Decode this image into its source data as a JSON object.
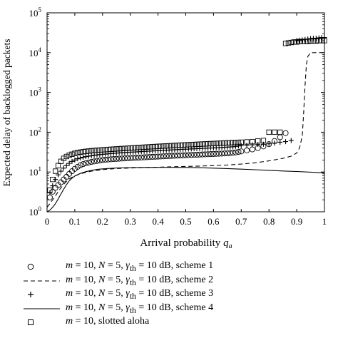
{
  "chart_data": {
    "type": "scatter",
    "xlabel": "Arrival probability",
    "xlabel_symbol": "q",
    "xlabel_sub": "a",
    "ylabel": "Expected delay of backlogged packets",
    "xlim": [
      0,
      1
    ],
    "ylim": [
      1,
      100000
    ],
    "yscale": "log",
    "x_ticks": [
      "0",
      "0.1",
      "0.2",
      "0.3",
      "0.4",
      "0.5",
      "0.6",
      "0.7",
      "0.8",
      "0.9",
      "1"
    ],
    "y_ticks": [
      {
        "base": "10",
        "exp": "0"
      },
      {
        "base": "10",
        "exp": "1"
      },
      {
        "base": "10",
        "exp": "2"
      },
      {
        "base": "10",
        "exp": "3"
      },
      {
        "base": "10",
        "exp": "4"
      },
      {
        "base": "10",
        "exp": "5"
      }
    ],
    "grid": false,
    "legend_position": "below",
    "series": [
      {
        "label": {
          "pre": "m",
          "a": " = 10, ",
          "b": "N",
          "c": " = 5, ",
          "d": "γ",
          "sub": "th",
          "e": " = 10 dB, scheme 1"
        },
        "marker": "circle",
        "x": [
          0.01,
          0.02,
          0.03,
          0.04,
          0.05,
          0.06,
          0.07,
          0.08,
          0.09,
          0.1,
          0.11,
          0.12,
          0.13,
          0.14,
          0.15,
          0.16,
          0.17,
          0.18,
          0.19,
          0.2,
          0.21,
          0.22,
          0.23,
          0.24,
          0.25,
          0.26,
          0.27,
          0.28,
          0.29,
          0.3,
          0.31,
          0.32,
          0.33,
          0.34,
          0.35,
          0.36,
          0.37,
          0.38,
          0.39,
          0.4,
          0.41,
          0.42,
          0.43,
          0.44,
          0.45,
          0.46,
          0.47,
          0.48,
          0.49,
          0.5,
          0.51,
          0.52,
          0.53,
          0.54,
          0.55,
          0.56,
          0.57,
          0.58,
          0.59,
          0.6,
          0.61,
          0.62,
          0.63,
          0.64,
          0.65,
          0.66,
          0.67,
          0.68,
          0.69,
          0.7,
          0.72,
          0.74,
          0.76,
          0.78,
          0.8,
          0.82,
          0.84,
          0.86
        ],
        "y": [
          2.3,
          3.2,
          4.0,
          4.7,
          5.5,
          6.5,
          7.6,
          9.0,
          10.5,
          12.0,
          13.5,
          14.8,
          15.8,
          16.6,
          17.3,
          18.0,
          18.5,
          19.0,
          19.5,
          20.0,
          20.3,
          20.6,
          20.9,
          21.2,
          21.4,
          21.6,
          21.8,
          22.0,
          22.2,
          22.4,
          22.6,
          22.8,
          23.0,
          23.2,
          23.4,
          23.6,
          23.8,
          24.0,
          24.2,
          24.4,
          24.6,
          24.8,
          25.0,
          25.2,
          25.4,
          25.6,
          25.8,
          26.0,
          26.2,
          26.4,
          26.6,
          26.8,
          27.0,
          27.2,
          27.4,
          27.6,
          27.8,
          28.0,
          28.2,
          28.4,
          28.6,
          28.8,
          29.0,
          29.3,
          29.6,
          30,
          30.5,
          31,
          32,
          33,
          35,
          37,
          40,
          44,
          50,
          60,
          75,
          95
        ]
      },
      {
        "label": {
          "pre": "m",
          "a": " = 10, ",
          "b": "N",
          "c": " = 5, ",
          "d": "γ",
          "sub": "th",
          "e": " = 10 dB, scheme 2"
        },
        "marker": "dashed",
        "x": [
          0,
          0.01,
          0.02,
          0.03,
          0.04,
          0.05,
          0.06,
          0.07,
          0.08,
          0.09,
          0.1,
          0.12,
          0.14,
          0.16,
          0.18,
          0.2,
          0.25,
          0.3,
          0.35,
          0.4,
          0.45,
          0.5,
          0.55,
          0.6,
          0.65,
          0.7,
          0.75,
          0.8,
          0.85,
          0.88,
          0.9,
          0.91,
          0.92,
          0.925,
          0.93,
          0.935,
          0.94,
          0.95,
          0.97,
          1.0
        ],
        "y": [
          1.3,
          1.6,
          2.0,
          2.5,
          3.2,
          4.0,
          4.9,
          5.8,
          6.7,
          7.4,
          8.0,
          9.0,
          9.8,
          10.5,
          11.0,
          11.5,
          12.2,
          12.6,
          12.9,
          13.2,
          13.5,
          13.8,
          14.1,
          14.5,
          15.0,
          15.8,
          17.0,
          19.0,
          22.0,
          25.0,
          30.0,
          40.0,
          80.0,
          300,
          1500,
          5000,
          8000,
          10000,
          10000,
          10000
        ]
      },
      {
        "label": {
          "pre": "m",
          "a": " = 10, ",
          "b": "N",
          "c": " = 5, ",
          "d": "γ",
          "sub": "th",
          "e": " = 10 dB, scheme 3"
        },
        "marker": "plus",
        "x": [
          0.01,
          0.02,
          0.03,
          0.04,
          0.05,
          0.06,
          0.07,
          0.08,
          0.09,
          0.1,
          0.11,
          0.12,
          0.13,
          0.14,
          0.15,
          0.16,
          0.17,
          0.18,
          0.19,
          0.2,
          0.21,
          0.22,
          0.23,
          0.24,
          0.25,
          0.26,
          0.27,
          0.28,
          0.29,
          0.3,
          0.31,
          0.32,
          0.33,
          0.34,
          0.35,
          0.36,
          0.37,
          0.38,
          0.39,
          0.4,
          0.41,
          0.42,
          0.43,
          0.44,
          0.45,
          0.46,
          0.47,
          0.48,
          0.49,
          0.5,
          0.51,
          0.52,
          0.53,
          0.54,
          0.55,
          0.56,
          0.57,
          0.58,
          0.59,
          0.6,
          0.61,
          0.62,
          0.63,
          0.64,
          0.65,
          0.66,
          0.67,
          0.68,
          0.69,
          0.7,
          0.72,
          0.74,
          0.76,
          0.78,
          0.8,
          0.82,
          0.84,
          0.86,
          0.88,
          0.9,
          0.91,
          0.92,
          0.93,
          0.94,
          0.95,
          0.96,
          0.97,
          0.98,
          0.99,
          1.0
        ],
        "y": [
          3.0,
          4.5,
          6.5,
          8.5,
          10.5,
          12.5,
          14.5,
          16.5,
          18.5,
          20.0,
          21.5,
          22.5,
          23.5,
          24.3,
          25.0,
          25.6,
          26.2,
          26.8,
          27.3,
          27.8,
          28.2,
          28.6,
          29.0,
          29.4,
          29.8,
          30.2,
          30.5,
          30.8,
          31.1,
          31.4,
          31.7,
          32.0,
          32.3,
          32.6,
          32.9,
          33.2,
          33.5,
          33.8,
          34.1,
          34.4,
          34.7,
          35.0,
          35.3,
          35.6,
          35.9,
          36.2,
          36.5,
          36.8,
          37.1,
          37.4,
          37.7,
          38.0,
          38.3,
          38.6,
          38.9,
          39.2,
          39.5,
          39.8,
          40.1,
          40.4,
          40.7,
          41.0,
          41.4,
          41.8,
          42.2,
          42.6,
          43,
          44,
          45,
          46,
          47,
          48,
          49,
          50,
          51,
          53,
          56,
          58,
          62,
          20000,
          20500,
          21000,
          21500,
          22000,
          22500,
          23000,
          23000,
          23500,
          24000,
          24000
        ]
      },
      {
        "label": {
          "pre": "m",
          "a": " = 10, ",
          "b": "N",
          "c": " = 5, ",
          "d": "γ",
          "sub": "th",
          "e": " = 10 dB, scheme 4"
        },
        "marker": "solid",
        "x": [
          0,
          0.01,
          0.02,
          0.03,
          0.04,
          0.05,
          0.06,
          0.07,
          0.08,
          0.09,
          0.1,
          0.12,
          0.14,
          0.16,
          0.18,
          0.2,
          0.25,
          0.3,
          0.35,
          0.4,
          0.45,
          0.5,
          0.55,
          0.6,
          0.65,
          0.7,
          0.75,
          0.8,
          0.85,
          0.9,
          0.95,
          1.0
        ],
        "y": [
          1.0,
          1.1,
          1.3,
          1.6,
          2.1,
          2.8,
          3.7,
          4.8,
          6.0,
          7.0,
          7.9,
          9.2,
          10.2,
          11.0,
          11.6,
          12.0,
          12.6,
          12.9,
          13.0,
          13.1,
          13.1,
          13.0,
          12.8,
          12.5,
          12.2,
          11.8,
          11.4,
          11.0,
          10.6,
          10.3,
          9.9,
          9.5
        ]
      },
      {
        "label": {
          "pre": "m",
          "a": " = 10, slotted aloha",
          "b": "",
          "c": "",
          "d": "",
          "sub": "",
          "e": ""
        },
        "marker": "square",
        "x": [
          0.01,
          0.02,
          0.03,
          0.04,
          0.05,
          0.06,
          0.07,
          0.08,
          0.09,
          0.1,
          0.11,
          0.12,
          0.13,
          0.14,
          0.15,
          0.16,
          0.17,
          0.18,
          0.19,
          0.2,
          0.21,
          0.22,
          0.23,
          0.24,
          0.25,
          0.26,
          0.27,
          0.28,
          0.29,
          0.3,
          0.31,
          0.32,
          0.33,
          0.34,
          0.35,
          0.36,
          0.37,
          0.38,
          0.39,
          0.4,
          0.41,
          0.42,
          0.43,
          0.44,
          0.45,
          0.46,
          0.47,
          0.48,
          0.49,
          0.5,
          0.51,
          0.52,
          0.53,
          0.54,
          0.55,
          0.56,
          0.57,
          0.58,
          0.59,
          0.6,
          0.61,
          0.62,
          0.63,
          0.64,
          0.65,
          0.66,
          0.67,
          0.68,
          0.69,
          0.7,
          0.72,
          0.74,
          0.76,
          0.78,
          0.8,
          0.82,
          0.84,
          0.86,
          0.87,
          0.88,
          0.89,
          0.9,
          0.91,
          0.92,
          0.93,
          0.94,
          0.95,
          0.96,
          0.97,
          0.98,
          0.99,
          1.0
        ],
        "y": [
          3.5,
          6.5,
          10.5,
          14.5,
          18.5,
          22.0,
          24.5,
          26.5,
          28.0,
          29.5,
          30.5,
          31.5,
          32.3,
          33.0,
          33.6,
          34.2,
          34.7,
          35.2,
          35.6,
          36.0,
          36.4,
          36.8,
          37.2,
          37.6,
          38.0,
          38.4,
          38.8,
          39.2,
          39.6,
          40.0,
          40.4,
          40.8,
          41.2,
          41.6,
          42.0,
          42.4,
          42.8,
          43.2,
          43.6,
          44.0,
          44.4,
          44.8,
          45.2,
          45.6,
          46.0,
          46.4,
          46.8,
          47.2,
          47.6,
          48.0,
          48.4,
          48.8,
          49.2,
          49.6,
          50.0,
          50.4,
          50.8,
          51.2,
          51.6,
          52.0,
          52.4,
          52.8,
          53.2,
          53.6,
          54.0,
          54.4,
          54.8,
          55.2,
          55.6,
          56.0,
          57,
          58,
          60,
          62,
          100,
          100,
          100,
          17000,
          17500,
          18000,
          18500,
          18500,
          19000,
          19000,
          19000,
          19000,
          19500,
          19500,
          19500,
          20000,
          20000,
          20000
        ]
      }
    ]
  }
}
